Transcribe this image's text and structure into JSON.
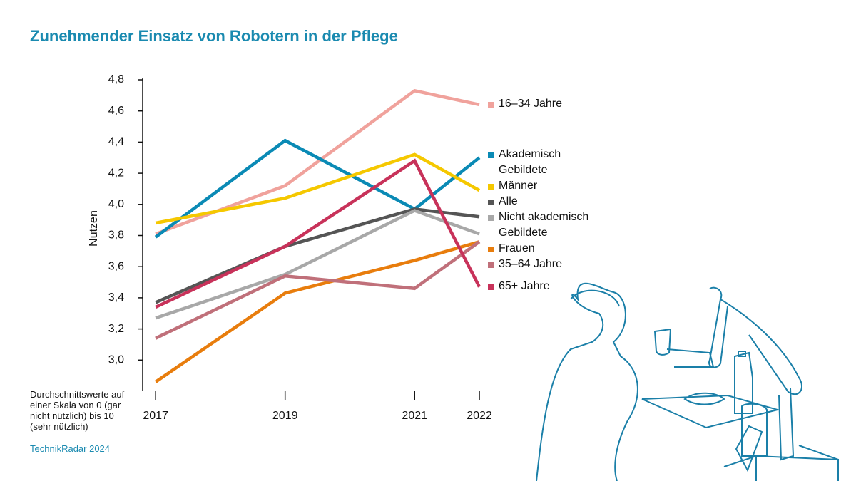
{
  "chart_data": {
    "type": "line",
    "title": "Zunehmender Einsatz von Robotern in der Pflege",
    "y_label": "Nutzen",
    "note": "Durchschnittswerte auf einer Skala von 0 (gar nicht nützlich) bis 10 (sehr nützlich)",
    "source": "TechnikRadar 2024",
    "x": [
      2017,
      2019,
      2021,
      2022
    ],
    "xlim": [
      2016.8,
      2022
    ],
    "xticks": [
      2017,
      2019,
      2021,
      2022
    ],
    "ylim": [
      2.8,
      4.8
    ],
    "yticks": [
      {
        "value": 3.0,
        "label": "3,0"
      },
      {
        "value": 3.2,
        "label": "3,2"
      },
      {
        "value": 3.4,
        "label": "3,4"
      },
      {
        "value": 3.6,
        "label": "3,6"
      },
      {
        "value": 3.8,
        "label": "3,8"
      },
      {
        "value": 4.0,
        "label": "4,0"
      },
      {
        "value": 4.2,
        "label": "4,2"
      },
      {
        "value": 4.4,
        "label": "4,4"
      },
      {
        "value": 4.6,
        "label": "4,6"
      },
      {
        "value": 4.8,
        "label": "4,8"
      }
    ],
    "series": [
      {
        "name": "16–34 Jahre",
        "color": "#f0a29c",
        "values": [
          3.81,
          4.12,
          4.73,
          4.64
        ]
      },
      {
        "name": "Akademisch Gebildete",
        "color": "#0a8ab5",
        "values": [
          3.79,
          4.41,
          3.97,
          4.3
        ]
      },
      {
        "name": "Männer",
        "color": "#f5c800",
        "values": [
          3.88,
          4.04,
          4.32,
          4.09
        ]
      },
      {
        "name": "Alle",
        "color": "#555555",
        "values": [
          3.37,
          3.73,
          3.97,
          3.92
        ]
      },
      {
        "name": "Nicht akademisch Gebildete",
        "color": "#a8a8a8",
        "values": [
          3.27,
          3.55,
          3.96,
          3.81
        ]
      },
      {
        "name": "Frauen",
        "color": "#e87d0d",
        "values": [
          2.86,
          3.43,
          3.64,
          3.76
        ]
      },
      {
        "name": "35–64 Jahre",
        "color": "#c0707a",
        "values": [
          3.14,
          3.54,
          3.46,
          3.76
        ]
      },
      {
        "name": "65+ Jahre",
        "color": "#c8325a",
        "values": [
          3.34,
          3.73,
          4.28,
          3.47
        ]
      }
    ]
  }
}
